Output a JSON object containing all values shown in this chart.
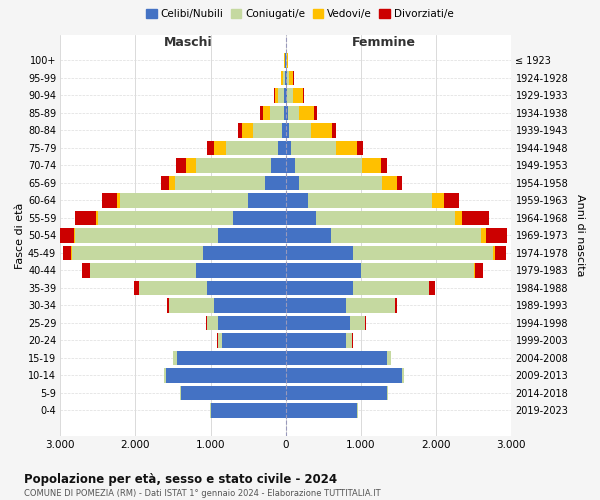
{
  "age_groups": [
    "0-4",
    "5-9",
    "10-14",
    "15-19",
    "20-24",
    "25-29",
    "30-34",
    "35-39",
    "40-44",
    "45-49",
    "50-54",
    "55-59",
    "60-64",
    "65-69",
    "70-74",
    "75-79",
    "80-84",
    "85-89",
    "90-94",
    "95-99",
    "100+"
  ],
  "birth_years": [
    "2019-2023",
    "2014-2018",
    "2009-2013",
    "2004-2008",
    "1999-2003",
    "1994-1998",
    "1989-1993",
    "1984-1988",
    "1979-1983",
    "1974-1978",
    "1969-1973",
    "1964-1968",
    "1959-1963",
    "1954-1958",
    "1949-1953",
    "1944-1948",
    "1939-1943",
    "1934-1938",
    "1929-1933",
    "1924-1928",
    "≤ 1923"
  ],
  "male": {
    "celibi": [
      1000,
      1400,
      1600,
      1450,
      850,
      900,
      950,
      1050,
      1200,
      1100,
      900,
      700,
      500,
      280,
      200,
      100,
      50,
      30,
      20,
      10,
      5
    ],
    "coniugati": [
      5,
      10,
      20,
      50,
      50,
      150,
      600,
      900,
      1400,
      1750,
      1900,
      1800,
      1700,
      1200,
      1000,
      700,
      380,
      180,
      80,
      30,
      10
    ],
    "vedovi": [
      0,
      0,
      0,
      0,
      5,
      5,
      5,
      5,
      10,
      10,
      20,
      30,
      50,
      80,
      130,
      150,
      150,
      100,
      50,
      20,
      5
    ],
    "divorziati": [
      0,
      0,
      0,
      0,
      5,
      10,
      30,
      60,
      100,
      100,
      220,
      280,
      200,
      100,
      130,
      100,
      60,
      30,
      10,
      5,
      0
    ]
  },
  "female": {
    "nubili": [
      950,
      1350,
      1550,
      1350,
      800,
      850,
      800,
      900,
      1000,
      900,
      600,
      400,
      300,
      180,
      120,
      70,
      40,
      30,
      20,
      10,
      5
    ],
    "coniugate": [
      5,
      10,
      20,
      50,
      80,
      200,
      650,
      1000,
      1500,
      1850,
      2000,
      1850,
      1650,
      1100,
      900,
      600,
      300,
      150,
      80,
      30,
      10
    ],
    "vedove": [
      0,
      0,
      0,
      0,
      5,
      5,
      5,
      10,
      20,
      30,
      60,
      100,
      150,
      200,
      250,
      280,
      280,
      200,
      130,
      60,
      15
    ],
    "divorziate": [
      0,
      0,
      0,
      0,
      5,
      10,
      30,
      80,
      100,
      150,
      280,
      350,
      200,
      70,
      80,
      80,
      50,
      30,
      10,
      5,
      0
    ]
  },
  "colors": {
    "celibi": "#4472c4",
    "coniugati": "#c5d9a0",
    "vedovi": "#ffc000",
    "divorziati": "#cc0000"
  },
  "xlim": 3000,
  "title": "Popolazione per età, sesso e stato civile - 2024",
  "subtitle": "COMUNE DI POMEZIA (RM) - Dati ISTAT 1° gennaio 2024 - Elaborazione TUTTITALIA.IT",
  "ylabel_left": "Fasce di età",
  "ylabel_right": "Anni di nascita",
  "label_maschi": "Maschi",
  "label_femmine": "Femmine",
  "legend_labels": [
    "Celibi/Nubili",
    "Coniugati/e",
    "Vedovi/e",
    "Divorziati/e"
  ],
  "bg_color": "#f5f5f5",
  "plot_bg": "#ffffff"
}
